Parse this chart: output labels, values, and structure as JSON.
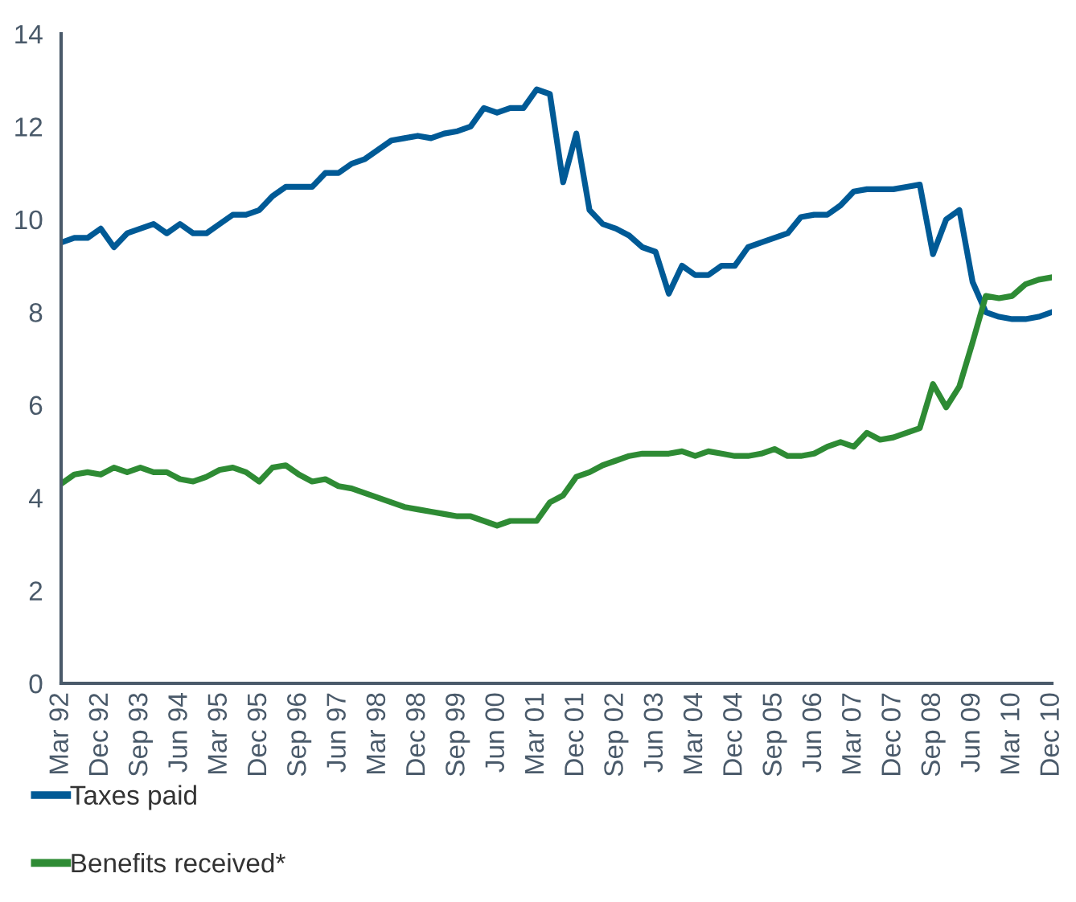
{
  "chart_data": {
    "type": "line",
    "categories": [
      "Mar 92",
      null,
      null,
      "Dec 92",
      null,
      null,
      "Sep 93",
      null,
      null,
      "Jun 94",
      null,
      null,
      "Mar 95",
      null,
      null,
      "Dec 95",
      null,
      null,
      "Sep 96",
      null,
      null,
      "Jun 97",
      null,
      null,
      "Mar 98",
      null,
      null,
      "Dec 98",
      null,
      null,
      "Sep 99",
      null,
      null,
      "Jun 00",
      null,
      null,
      "Mar 01",
      null,
      null,
      "Dec 01",
      null,
      null,
      "Sep 02",
      null,
      null,
      "Jun 03",
      null,
      null,
      "Mar 04",
      null,
      null,
      "Dec 04",
      null,
      null,
      "Sep 05",
      null,
      null,
      "Jun 06",
      null,
      null,
      "Mar 07",
      null,
      null,
      "Dec 07",
      null,
      null,
      "Sep 08",
      null,
      null,
      "Jun 09",
      null,
      null,
      "Mar 10",
      null,
      null,
      "Dec 10"
    ],
    "series": [
      {
        "name": "Taxes paid",
        "color": "#005a96",
        "values": [
          9.5,
          9.6,
          9.6,
          9.8,
          9.4,
          9.7,
          9.8,
          9.9,
          9.7,
          9.9,
          9.7,
          9.7,
          9.9,
          10.1,
          10.1,
          10.2,
          10.5,
          10.7,
          10.7,
          10.7,
          11.0,
          11.0,
          11.2,
          11.3,
          11.5,
          11.7,
          11.75,
          11.8,
          11.75,
          11.85,
          11.9,
          12.0,
          12.4,
          12.3,
          12.4,
          12.4,
          12.8,
          12.7,
          10.8,
          11.85,
          10.2,
          9.9,
          9.8,
          9.65,
          9.4,
          9.3,
          8.4,
          9.0,
          8.8,
          8.8,
          9.0,
          9.0,
          9.4,
          9.5,
          9.6,
          9.7,
          10.05,
          10.1,
          10.1,
          10.3,
          10.6,
          10.65,
          10.65,
          10.65,
          10.7,
          10.75,
          9.25,
          10.0,
          10.2,
          8.65,
          8.0,
          7.9,
          7.85,
          7.85,
          7.9,
          8.0
        ]
      },
      {
        "name": "Benefits received*",
        "color": "#2e8b34",
        "values": [
          4.3,
          4.5,
          4.55,
          4.5,
          4.65,
          4.55,
          4.65,
          4.55,
          4.55,
          4.4,
          4.35,
          4.45,
          4.6,
          4.65,
          4.55,
          4.35,
          4.65,
          4.7,
          4.5,
          4.35,
          4.4,
          4.25,
          4.2,
          4.1,
          4.0,
          3.9,
          3.8,
          3.75,
          3.7,
          3.65,
          3.6,
          3.6,
          3.5,
          3.4,
          3.5,
          3.5,
          3.5,
          3.9,
          4.05,
          4.45,
          4.55,
          4.7,
          4.8,
          4.9,
          4.95,
          4.95,
          4.95,
          5.0,
          4.9,
          5.0,
          4.95,
          4.9,
          4.9,
          4.95,
          5.05,
          4.9,
          4.9,
          4.95,
          5.1,
          5.2,
          5.1,
          5.4,
          5.25,
          5.3,
          5.4,
          5.5,
          6.45,
          5.95,
          6.4,
          7.35,
          8.35,
          8.3,
          8.35,
          8.6,
          8.7,
          8.75
        ]
      }
    ],
    "ylim": [
      0,
      14
    ],
    "yticks": [
      0,
      2,
      4,
      6,
      8,
      10,
      12,
      14
    ],
    "grid": false,
    "legend": "bottom left",
    "marker": "none",
    "line_style": "solid"
  }
}
